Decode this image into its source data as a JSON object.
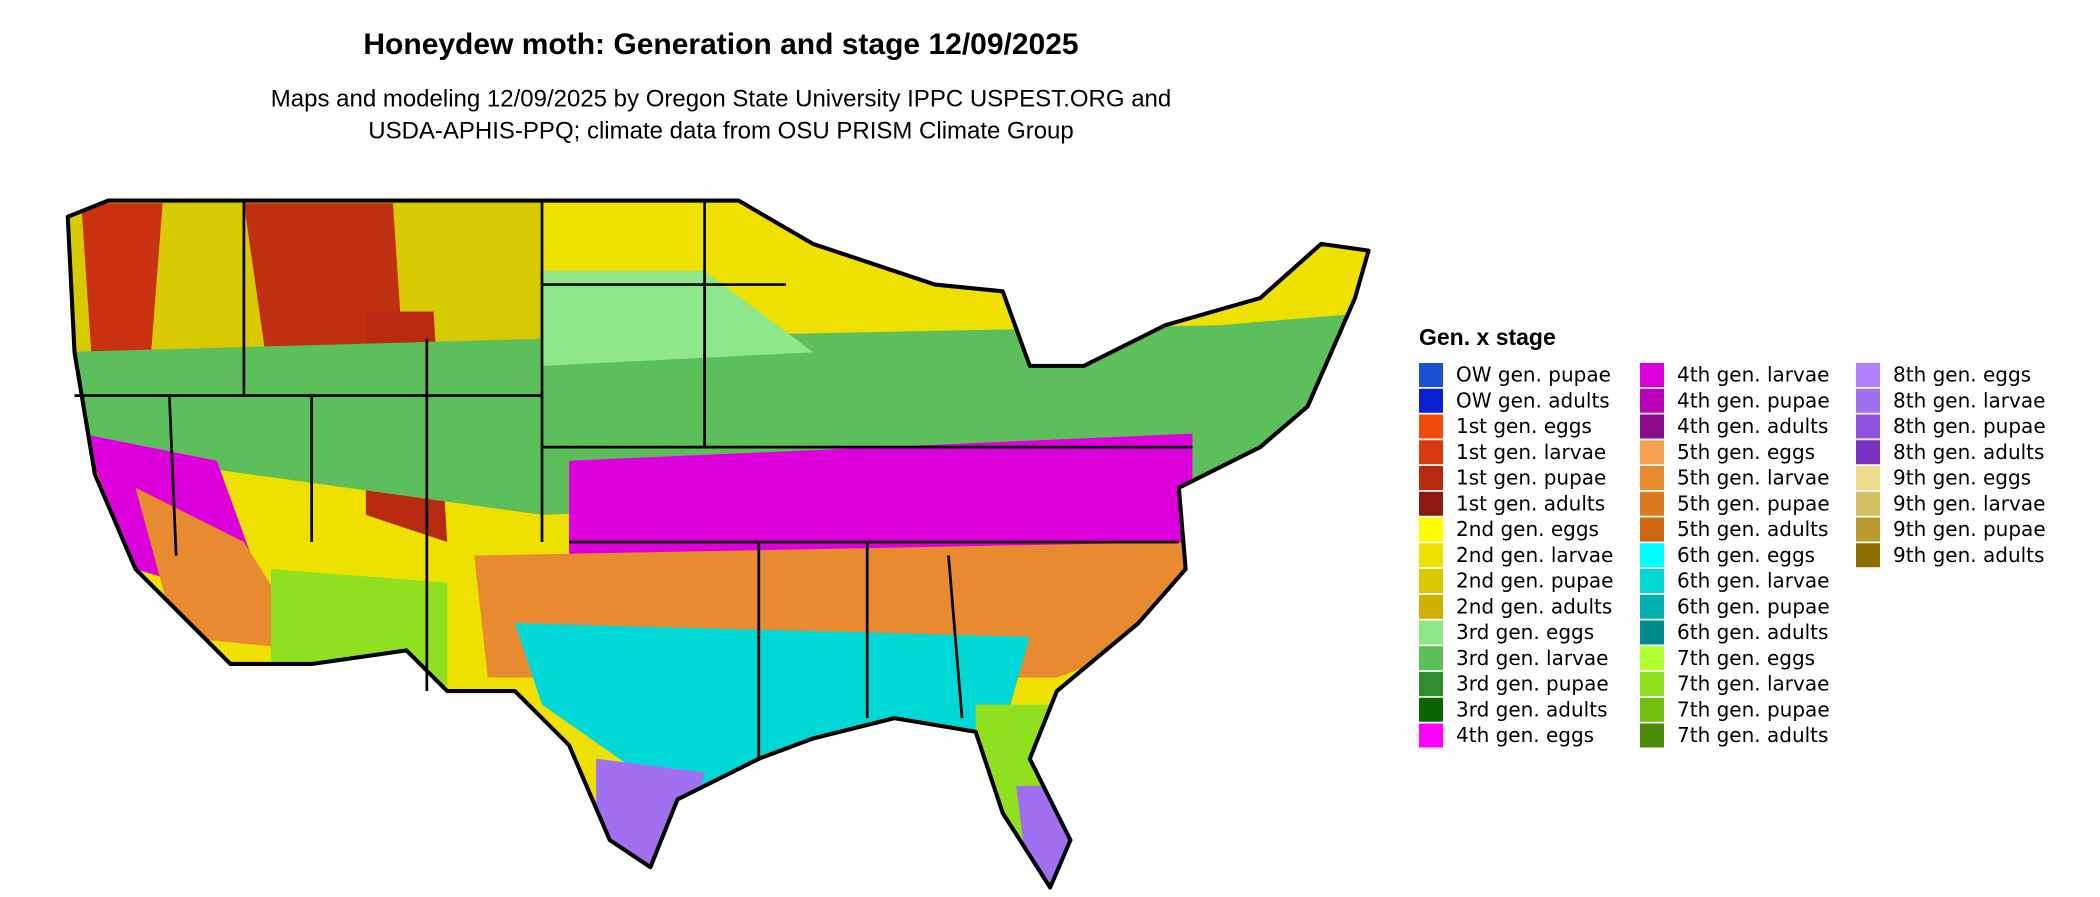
{
  "header": {
    "title": "Honeydew moth: Generation and stage 12/09/2025",
    "subtitle_lines": [
      "Maps and modeling 12/09/2025 by Oregon State University IPPC USPEST.ORG and",
      "USDA-APHIS-PPQ; climate data from OSU PRISM Climate Group"
    ]
  },
  "legend": {
    "title": "Gen. x stage",
    "items": [
      {
        "label": "OW gen. pupae",
        "color": "#1a4fd6"
      },
      {
        "label": "OW gen. adults",
        "color": "#0a1fd0"
      },
      {
        "label": "1st gen. eggs",
        "color": "#f04a0a"
      },
      {
        "label": "1st gen. larvae",
        "color": "#d8390e"
      },
      {
        "label": "1st gen. pupae",
        "color": "#b82a10"
      },
      {
        "label": "1st gen. adults",
        "color": "#8b1a14"
      },
      {
        "label": "2nd gen. eggs",
        "color": "#ffff00"
      },
      {
        "label": "2nd gen. larvae",
        "color": "#eee000"
      },
      {
        "label": "2nd gen. pupae",
        "color": "#dcc800"
      },
      {
        "label": "2nd gen. adults",
        "color": "#cdb000"
      },
      {
        "label": "3rd gen. eggs",
        "color": "#8ee88a"
      },
      {
        "label": "3rd gen. larvae",
        "color": "#5cbf5c"
      },
      {
        "label": "3rd gen. pupae",
        "color": "#2e8b2e"
      },
      {
        "label": "3rd gen. adults",
        "color": "#0a6400"
      },
      {
        "label": "4th gen. eggs",
        "color": "#ff00ff"
      },
      {
        "label": "4th gen. larvae",
        "color": "#dd00dd"
      },
      {
        "label": "4th gen. pupae",
        "color": "#bb00bb"
      },
      {
        "label": "4th gen. adults",
        "color": "#8b0a8b"
      },
      {
        "label": "5th gen. eggs",
        "color": "#f7a050"
      },
      {
        "label": "5th gen. larvae",
        "color": "#e88a30"
      },
      {
        "label": "5th gen. pupae",
        "color": "#dd7a20"
      },
      {
        "label": "5th gen. adults",
        "color": "#cc6610"
      },
      {
        "label": "6th gen. eggs",
        "color": "#00ffff"
      },
      {
        "label": "6th gen. larvae",
        "color": "#00d8d8"
      },
      {
        "label": "6th gen. pupae",
        "color": "#00b0b0"
      },
      {
        "label": "6th gen. adults",
        "color": "#008b8b"
      },
      {
        "label": "7th gen. eggs",
        "color": "#b0ff30"
      },
      {
        "label": "7th gen. larvae",
        "color": "#90e020"
      },
      {
        "label": "7th gen. pupae",
        "color": "#70c010"
      },
      {
        "label": "7th gen. adults",
        "color": "#4a8b0a"
      },
      {
        "label": "8th gen. eggs",
        "color": "#b080ff"
      },
      {
        "label": "8th gen. larvae",
        "color": "#a070f0"
      },
      {
        "label": "8th gen. pupae",
        "color": "#9050e0"
      },
      {
        "label": "8th gen. adults",
        "color": "#7a30c0"
      },
      {
        "label": "9th gen. eggs",
        "color": "#f0dc8a"
      },
      {
        "label": "9th gen. larvae",
        "color": "#d4c060"
      },
      {
        "label": "9th gen. pupae",
        "color": "#b89a30"
      },
      {
        "label": "9th gen. adults",
        "color": "#8b7000"
      }
    ]
  }
}
